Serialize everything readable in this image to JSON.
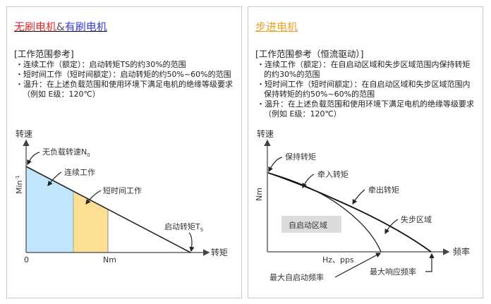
{
  "left": {
    "title_part1": "无刷电机",
    "title_amp": "&",
    "title_part2": "有刷电机",
    "title_colors": {
      "part1": "#e8262a",
      "part2": "#3a3ad8"
    },
    "info_heading": "[工作范围参考]",
    "items": [
      "・连续工作（额定）：启动转矩TS的约30%的范围",
      "・短时间工作（短时间额定）：启动转矩的约50%~60%的范围",
      "・温升：在上述负载范围和使用环境下满足电机的绝缘等级要求（例如 E级：120℃）"
    ],
    "chart": {
      "y_title": "转速",
      "y_unit": "Min",
      "y_unit_sup": "-1",
      "x_title": "转矩",
      "x_origin": "0",
      "x_tick": "Nm",
      "no_load_label": "无负载转速N",
      "no_load_sub": "0",
      "continuous_label": "连续工作",
      "short_label": "短时间工作",
      "stall_label": "启动转矩T",
      "stall_sub": "S",
      "colors": {
        "continuous": "#bfe6fa",
        "short": "#fddf93"
      }
    }
  },
  "right": {
    "title": "步进电机",
    "title_color": "#f3a020",
    "info_heading": "[工作范围参考（恒流驱动）]",
    "items": [
      "・连续工作（额定）：在自启动区域和失步区域范围内保持转矩的约30%的范围",
      "・短时间工作（短时间额定）：在自启动区域和失步区域范围内保持转矩的约50%~60%的范围",
      "・温升：在上述负载范围和使用环境下满足电机的绝缘等级要求（例如 E级：120℃）"
    ],
    "chart": {
      "y_title": "转速",
      "y_unit": "Nm",
      "x_title": "频率",
      "x_unit": "Hz、pps",
      "holding_label": "保持转矩",
      "pull_in_label": "牵入转矩",
      "pull_out_label": "牵出转矩",
      "step_out_label": "失步区域",
      "self_start_label": "自启动区域",
      "max_start_label": "最大自启动频率",
      "max_response_label": "最大响应频率"
    }
  }
}
